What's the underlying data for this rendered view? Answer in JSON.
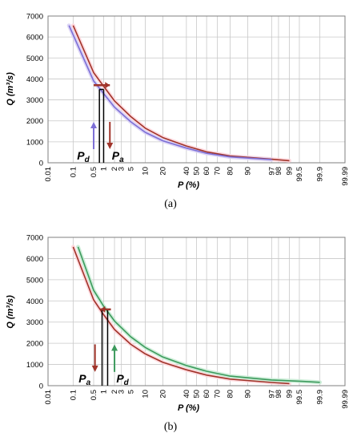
{
  "colors": {
    "brown": "#a0342a",
    "blue": "#7d6fd6",
    "green": "#3c9a5c",
    "grid": "#c8c8c8",
    "frame": "#7f7f7f",
    "pink_band": "#ffd6dc",
    "purple_band": "#d9d2f5",
    "green_band": "#c9ecd5"
  },
  "chart_data": [
    {
      "type": "line",
      "caption": "(a)",
      "title": "",
      "xlabel": "P (%)",
      "ylabel": "Q (m³/s)",
      "x_scale": "normal-probability",
      "x_ticks": [
        "0.01",
        "0.1",
        "0.5",
        "1",
        "2",
        "3",
        "5",
        "10",
        "20",
        "40",
        "50",
        "60",
        "70",
        "80",
        "90",
        "97",
        "98",
        "99",
        "99.5",
        "99.9",
        "99.99"
      ],
      "y_ticks": [
        "0",
        "1000",
        "2000",
        "3000",
        "4000",
        "5000",
        "6000",
        "7000"
      ],
      "ylim": [
        0,
        7000
      ],
      "grid": true,
      "series": [
        {
          "color": "brown",
          "x": [
            0.1,
            0.5,
            1,
            2,
            5,
            10,
            20,
            40,
            60,
            80,
            97,
            99
          ],
          "y": [
            6550,
            4300,
            3650,
            2950,
            2200,
            1650,
            1200,
            800,
            520,
            320,
            170,
            100
          ]
        },
        {
          "color": "blue",
          "x": [
            0.07,
            0.5,
            1,
            2,
            5,
            10,
            20,
            40,
            60,
            80,
            97
          ],
          "y": [
            6550,
            3900,
            3300,
            2650,
            1950,
            1450,
            1050,
            700,
            450,
            280,
            150
          ]
        }
      ],
      "annotations": {
        "label_left": "P",
        "label_left_sub": "d",
        "label_right": "P",
        "label_right_sub": "a",
        "box_left_p": 0.75,
        "box_right_p": 1.0,
        "box_q": 3500,
        "arrow_up_color": "blue",
        "arrow_up_p": 0.5,
        "arrow_down_color": "brown",
        "arrow_down_p": 1.5,
        "arrow_h_from_p": 0.5,
        "arrow_h_to_p": 1.5,
        "arrow_h_q": 3700
      }
    },
    {
      "type": "line",
      "caption": "(b)",
      "title": "",
      "xlabel": "P (%)",
      "ylabel": "Q (m³/s)",
      "x_scale": "normal-probability",
      "x_ticks": [
        "0.01",
        "0.1",
        "0.5",
        "1",
        "2",
        "3",
        "5",
        "10",
        "20",
        "40",
        "50",
        "60",
        "70",
        "80",
        "90",
        "97",
        "98",
        "99",
        "99.5",
        "99.9",
        "99.99"
      ],
      "y_ticks": [
        "0",
        "1000",
        "2000",
        "3000",
        "4000",
        "5000",
        "6000",
        "7000"
      ],
      "ylim": [
        0,
        7000
      ],
      "grid": true,
      "series": [
        {
          "color": "brown",
          "x": [
            0.1,
            0.5,
            1,
            2,
            5,
            10,
            20,
            40,
            60,
            80,
            97,
            99
          ],
          "y": [
            6550,
            4050,
            3350,
            2650,
            1950,
            1500,
            1100,
            750,
            500,
            310,
            150,
            100
          ]
        },
        {
          "color": "green",
          "x": [
            0.15,
            0.5,
            1,
            2,
            5,
            10,
            20,
            40,
            60,
            80,
            97,
            99.5,
            99.9
          ],
          "y": [
            6550,
            4500,
            3750,
            3050,
            2300,
            1800,
            1350,
            950,
            680,
            450,
            270,
            210,
            160
          ]
        }
      ],
      "annotations": {
        "label_left": "P",
        "label_left_sub": "a",
        "label_right": "P",
        "label_right_sub": "d",
        "box_left_p": 0.9,
        "box_right_p": 1.3,
        "box_q": 3600,
        "arrow_up_color": "green",
        "arrow_up_p": 2.0,
        "arrow_down_color": "brown",
        "arrow_down_p": 0.55,
        "arrow_h_from_p": 1.6,
        "arrow_h_to_p": 0.8,
        "arrow_h_q": 3600
      }
    }
  ]
}
